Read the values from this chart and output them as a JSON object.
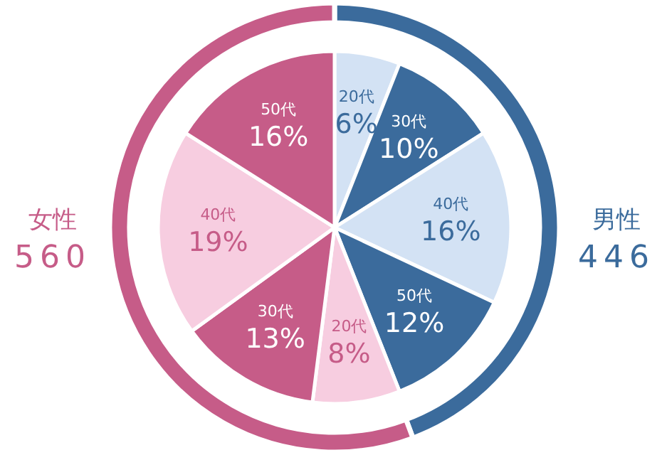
{
  "chart_data": [
    {
      "type": "donut",
      "categories": [
        "男性",
        "女性"
      ],
      "values": [
        446,
        560
      ],
      "colors": [
        "#3b6b9c",
        "#c65c88"
      ],
      "data_labels": true
    },
    {
      "type": "pie",
      "categories": [
        "20代",
        "30代",
        "40代",
        "50代",
        "20代",
        "30代",
        "40代",
        "50代"
      ],
      "values": [
        6,
        10,
        16,
        12,
        8,
        13,
        19,
        16
      ],
      "colors": [
        "#d3e2f4",
        "#3b6b9c",
        "#d3e2f4",
        "#3b6b9c",
        "#f7cde0",
        "#c65c88",
        "#f7cde0",
        "#c65c88"
      ],
      "value_labels": [
        "6%",
        "10%",
        "16%",
        "12%",
        "8%",
        "13%",
        "19%",
        "16%"
      ]
    }
  ]
}
